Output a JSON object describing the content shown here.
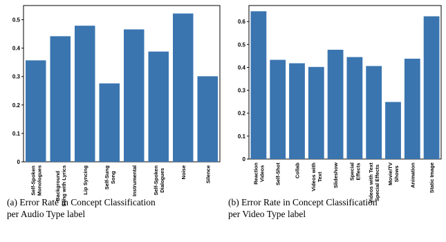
{
  "colors": {
    "bar": "#3a75b0"
  },
  "chart_data": [
    {
      "type": "bar",
      "categories": [
        [
          "Self-Spoken",
          "Monologues"
        ],
        [
          "Background",
          "Song with Lyrics"
        ],
        [
          "Lip Syncing"
        ],
        [
          "Self-Sung",
          "Song"
        ],
        [
          "Instrumental"
        ],
        [
          "Self-Spoken",
          "Dialogues"
        ],
        [
          "Noise"
        ],
        [
          "Silence"
        ]
      ],
      "values": [
        0.357,
        0.442,
        0.479,
        0.276,
        0.466,
        0.388,
        0.522,
        0.301
      ],
      "ylim": [
        0,
        0.55
      ],
      "yticks": [
        "0",
        "0.1",
        "0.2",
        "0.3",
        "0.4",
        "0.5"
      ],
      "caption": [
        "(a) Error Rate in Concept Classification",
        "per Audio Type label"
      ]
    },
    {
      "type": "bar",
      "categories": [
        [
          "Reaction",
          "Videos"
        ],
        [
          "Self-Shot"
        ],
        [
          "Collab"
        ],
        [
          "Videos with",
          "Text"
        ],
        [
          "Slideshow"
        ],
        [
          "Special",
          "Effects"
        ],
        [
          "Videos with Text",
          "Special Effects"
        ],
        [
          "Movie/TV",
          "Shows"
        ],
        [
          "Animation"
        ],
        [
          "Static Image"
        ]
      ],
      "values": [
        0.645,
        0.433,
        0.418,
        0.402,
        0.477,
        0.445,
        0.406,
        0.249,
        0.438,
        0.623
      ],
      "ylim": [
        0,
        0.67
      ],
      "yticks": [
        "0",
        "0.1",
        "0.2",
        "0.3",
        "0.4",
        "0.5",
        "0.6"
      ],
      "caption": [
        "(b) Error Rate in Concept Classification",
        "per Video Type label"
      ]
    }
  ]
}
